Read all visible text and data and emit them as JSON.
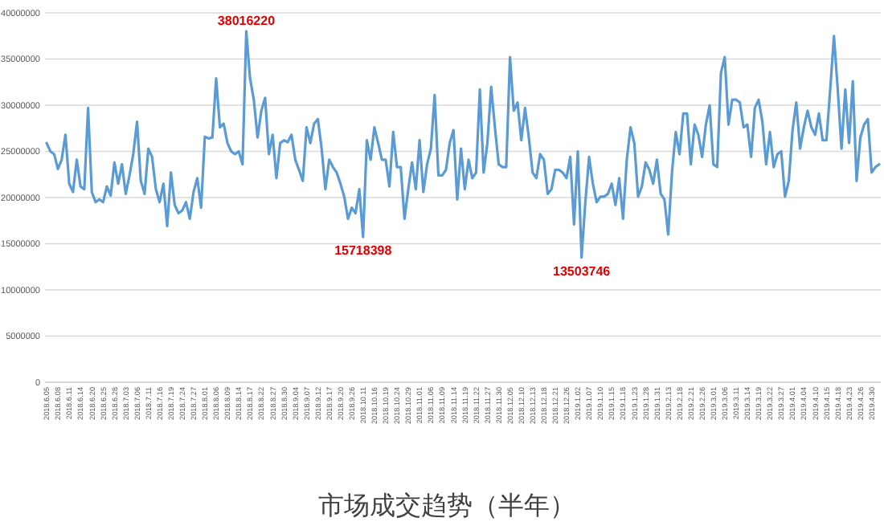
{
  "chart_data": {
    "type": "line",
    "title": "市场成交趋势（半年）",
    "categories": [
      "2018.6.05",
      null,
      null,
      "2018.6.08",
      null,
      null,
      "2018.6.11",
      null,
      null,
      "2018.6.14",
      null,
      null,
      "2018.6.20",
      null,
      null,
      "2018.6.25",
      null,
      null,
      "2018.6.28",
      null,
      null,
      "2018.7.03",
      null,
      null,
      "2018.7.06",
      null,
      null,
      "2018.7.11",
      null,
      null,
      "2018.7.16",
      null,
      null,
      "2018.7.19",
      null,
      null,
      "2018.7.24",
      null,
      null,
      "2018.7.27",
      null,
      null,
      "2018.8.01",
      null,
      null,
      "2018.8.06",
      null,
      null,
      "2018.8.09",
      null,
      null,
      "2018.8.14",
      null,
      null,
      "2018.8.17",
      null,
      null,
      "2018.8.22",
      null,
      null,
      "2018.8.27",
      null,
      null,
      "2018.8.30",
      null,
      null,
      "2018.9.04",
      null,
      null,
      "2018.9.07",
      null,
      null,
      "2018.9.12",
      null,
      null,
      "2018.9.17",
      null,
      null,
      "2018.9.20",
      null,
      null,
      "2018.9.26",
      null,
      null,
      "2018.10.11",
      null,
      null,
      "2018.10.16",
      null,
      null,
      "2018.10.19",
      null,
      null,
      "2018.10.24",
      null,
      null,
      "2018.10.29",
      null,
      null,
      "2018.11.01",
      null,
      null,
      "2018.11.06",
      null,
      null,
      "2018.11.09",
      null,
      null,
      "2018.11.14",
      null,
      null,
      "2018.11.19",
      null,
      null,
      "2018.11.22",
      null,
      null,
      "2018.11.27",
      null,
      null,
      "2018.11.30",
      null,
      null,
      "2018.12.05",
      null,
      null,
      "2018.12.10",
      null,
      null,
      "2018.12.13",
      null,
      null,
      "2018.12.18",
      null,
      null,
      "2018.12.21",
      null,
      null,
      "2018.12.26",
      null,
      null,
      "2019.1.02",
      null,
      null,
      "2019.1.07",
      null,
      null,
      "2019.1.10",
      null,
      null,
      "2019.1.15",
      null,
      null,
      "2019.1.18",
      null,
      null,
      "2019.1.23",
      null,
      null,
      "2019.1.28",
      null,
      null,
      "2019.1.31",
      null,
      null,
      "2019.2.13",
      null,
      null,
      "2019.2.18",
      null,
      null,
      "2019.2.21",
      null,
      null,
      "2019.2.26",
      null,
      null,
      "2019.3.01",
      null,
      null,
      "2019.3.06",
      null,
      null,
      "2019.3.11",
      null,
      null,
      "2019.3.14",
      null,
      null,
      "2019.3.19",
      null,
      null,
      "2019.3.22",
      null,
      null,
      "2019.3.27",
      null,
      null,
      "2019.4.01",
      null,
      null,
      "2019.4.04",
      null,
      null,
      "2019.4.10",
      null,
      null,
      "2019.4.15",
      null,
      null,
      "2019.4.18",
      null,
      null,
      "2019.4.23",
      null,
      null,
      "2019.4.26",
      null,
      null,
      "2019.4.30",
      null,
      null
    ],
    "series": [
      {
        "color": "#5b9bd5",
        "values": [
          25900000,
          25000000,
          24700000,
          23100000,
          24100000,
          26800000,
          21500000,
          20600000,
          24100000,
          21200000,
          20900000,
          29700000,
          20600000,
          19500000,
          19800000,
          19500000,
          21200000,
          20200000,
          23800000,
          21500000,
          23600000,
          20400000,
          22400000,
          24700000,
          28200000,
          21800000,
          20400000,
          25300000,
          24400000,
          20900000,
          19500000,
          21500000,
          16900000,
          22700000,
          19200000,
          18300000,
          18600000,
          19500000,
          17700000,
          20600000,
          22100000,
          18900000,
          26600000,
          26400000,
          26500000,
          32900000,
          27600000,
          28000000,
          25900000,
          25000000,
          24700000,
          25000000,
          23600000,
          38016220,
          32900000,
          30600000,
          26500000,
          29400000,
          30800000,
          24700000,
          26800000,
          22100000,
          25900000,
          26200000,
          26000000,
          26800000,
          24100000,
          23000000,
          21800000,
          27600000,
          25900000,
          28000000,
          28500000,
          25300000,
          20900000,
          24100000,
          23300000,
          22700000,
          21500000,
          20100000,
          17700000,
          18900000,
          18300000,
          20900000,
          15718398,
          26200000,
          24100000,
          27600000,
          25900000,
          24100000,
          24100000,
          21200000,
          27100000,
          23300000,
          23300000,
          17700000,
          20900000,
          23800000,
          20900000,
          26200000,
          20600000,
          23600000,
          25300000,
          31100000,
          22400000,
          22400000,
          23000000,
          25900000,
          27300000,
          19800000,
          25300000,
          20900000,
          24100000,
          22100000,
          22700000,
          31700000,
          22700000,
          25900000,
          32000000,
          27600000,
          23600000,
          23300000,
          23300000,
          35200000,
          29400000,
          30300000,
          26200000,
          29700000,
          26500000,
          22700000,
          22100000,
          24700000,
          24100000,
          20400000,
          20900000,
          23000000,
          23000000,
          22700000,
          22100000,
          24400000,
          17100000,
          25000000,
          13503746,
          19500000,
          24400000,
          21500000,
          19500000,
          20100000,
          20100000,
          20400000,
          21500000,
          19200000,
          22100000,
          17700000,
          24100000,
          27600000,
          25900000,
          20100000,
          21200000,
          23800000,
          23000000,
          21500000,
          24100000,
          20400000,
          19800000,
          16000000,
          22700000,
          27100000,
          24700000,
          29100000,
          29100000,
          23600000,
          27900000,
          26800000,
          24400000,
          27900000,
          30000000,
          23600000,
          23300000,
          33500000,
          35200000,
          27900000,
          30600000,
          30600000,
          30300000,
          27600000,
          27900000,
          24400000,
          29700000,
          30600000,
          28200000,
          23600000,
          27100000,
          23300000,
          24700000,
          25000000,
          20100000,
          21800000,
          27300000,
          30300000,
          25300000,
          27600000,
          29400000,
          27600000,
          26800000,
          29100000,
          26200000,
          26200000,
          31700000,
          37500000,
          31700000,
          25300000,
          31700000,
          25900000,
          32600000,
          21800000,
          26500000,
          27900000,
          28500000,
          22700000,
          23300000,
          23600000
        ]
      }
    ],
    "ylim": [
      0,
      40000000
    ],
    "yticks": [
      0,
      5000000,
      10000000,
      15000000,
      20000000,
      25000000,
      30000000,
      35000000,
      40000000
    ],
    "grid": "y",
    "marker": "none",
    "line_style": "solid",
    "annotations": [
      {
        "text": "38016220",
        "y": 38016220
      },
      {
        "text": "15718398",
        "y": 15718398
      },
      {
        "text": "13503746",
        "y": 13503746
      }
    ]
  }
}
